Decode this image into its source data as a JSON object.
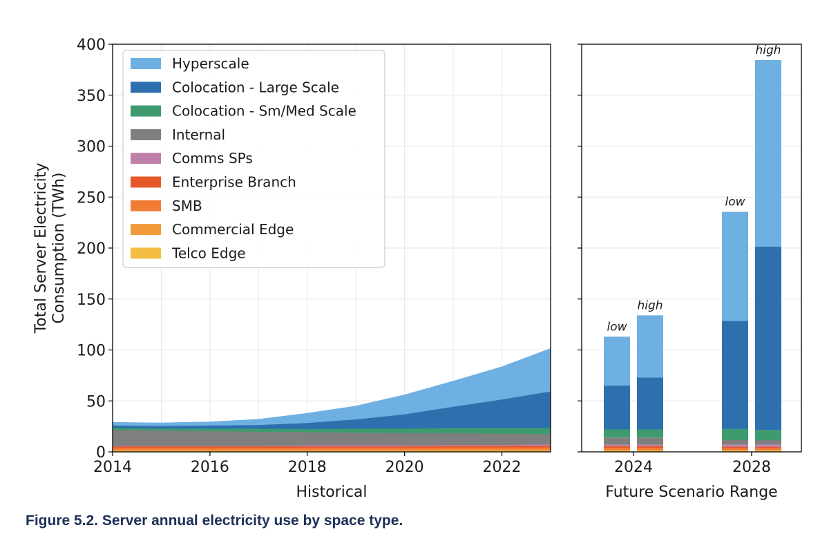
{
  "caption": "Figure 5.2.  Server annual electricity use by space type.",
  "chart_data": [
    {
      "type": "area",
      "subtype": "stacked",
      "xlabel": "Historical",
      "ylabel": "Total Server Electricity\nConsumption (TWh)",
      "xlim": [
        2014,
        2023
      ],
      "ylim": [
        0,
        400
      ],
      "xticks": [
        "2014",
        "2016",
        "2018",
        "2020",
        "2022"
      ],
      "yticks": [
        "0",
        "50",
        "100",
        "150",
        "200",
        "250",
        "300",
        "350",
        "400"
      ],
      "grid": true,
      "legend_position": "top-left",
      "x": [
        2014,
        2015,
        2016,
        2017,
        2018,
        2019,
        2020,
        2021,
        2022,
        2023
      ],
      "series": [
        {
          "name": "Telco Edge",
          "color": "#f6bd45",
          "values": [
            1,
            1,
            1,
            1,
            1,
            1,
            1,
            1,
            1,
            1
          ]
        },
        {
          "name": "Commercial Edge",
          "color": "#f29a3a",
          "values": [
            1,
            1,
            1,
            1,
            1,
            1,
            1,
            1.5,
            1.5,
            1.5
          ]
        },
        {
          "name": "SMB",
          "color": "#f27b35",
          "values": [
            2,
            2,
            2,
            2,
            2,
            2,
            2,
            2,
            2,
            2
          ]
        },
        {
          "name": "Enterprise Branch",
          "color": "#e5582a",
          "values": [
            1.5,
            1.5,
            1.5,
            1.5,
            1.5,
            1.5,
            1.5,
            1.5,
            1.5,
            1.5
          ]
        },
        {
          "name": "Comms SPs",
          "color": "#c07fa8",
          "values": [
            0.5,
            0.5,
            0.5,
            0.5,
            1,
            1,
            1,
            1,
            1,
            1.5
          ]
        },
        {
          "name": "Internal",
          "color": "#7f7f7f",
          "values": [
            15.5,
            15,
            14.5,
            14,
            13,
            12.5,
            12,
            11.5,
            11,
            10
          ]
        },
        {
          "name": "Colocation - Sm/Med Scale",
          "color": "#3e9b6e",
          "values": [
            2,
            2,
            2.5,
            3,
            3,
            4,
            4.5,
            5,
            5.5,
            6
          ]
        },
        {
          "name": "Colocation - Large Scale",
          "color": "#2e6fae",
          "values": [
            2.5,
            2.5,
            3,
            3.5,
            6,
            9,
            14,
            21,
            28,
            36
          ]
        },
        {
          "name": "Hyperscale",
          "color": "#6eb0e2",
          "values": [
            3,
            3,
            3.5,
            5.5,
            9.5,
            13,
            19,
            25,
            32,
            42
          ]
        }
      ]
    },
    {
      "type": "bar",
      "subtype": "stacked",
      "xlabel": "Future Scenario Range",
      "ylim": [
        0,
        400
      ],
      "xticks": [
        "2024",
        "2028"
      ],
      "grid": true,
      "bars": [
        {
          "year": "2024",
          "label": "low",
          "values": {
            "Telco Edge": 1,
            "Commercial Edge": 1,
            "SMB": 2,
            "Enterprise Branch": 1.5,
            "Comms SPs": 1.5,
            "Internal": 7,
            "Colocation - Sm/Med Scale": 8,
            "Colocation - Large Scale": 43,
            "Hyperscale": 48
          }
        },
        {
          "year": "2024",
          "label": "high",
          "values": {
            "Telco Edge": 1,
            "Commercial Edge": 1,
            "SMB": 2,
            "Enterprise Branch": 1.5,
            "Comms SPs": 1.5,
            "Internal": 7,
            "Colocation - Sm/Med Scale": 8,
            "Colocation - Large Scale": 51,
            "Hyperscale": 61
          }
        },
        {
          "year": "2028",
          "label": "low",
          "values": {
            "Telco Edge": 1,
            "Commercial Edge": 1,
            "SMB": 1.5,
            "Enterprise Branch": 1.5,
            "Comms SPs": 2,
            "Internal": 4.5,
            "Colocation - Sm/Med Scale": 11,
            "Colocation - Large Scale": 106,
            "Hyperscale": 107
          }
        },
        {
          "year": "2028",
          "label": "high",
          "values": {
            "Telco Edge": 1,
            "Commercial Edge": 1,
            "SMB": 1.5,
            "Enterprise Branch": 1.5,
            "Comms SPs": 2,
            "Internal": 4.5,
            "Colocation - Sm/Med Scale": 10,
            "Colocation - Large Scale": 180,
            "Hyperscale": 183
          }
        }
      ]
    }
  ]
}
